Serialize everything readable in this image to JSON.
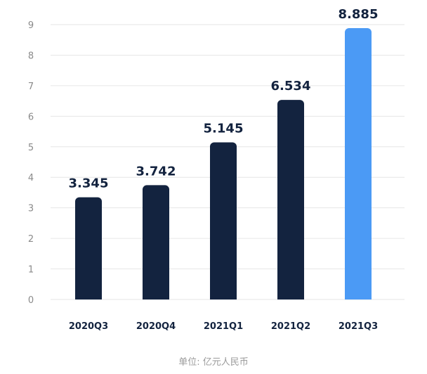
{
  "chart_data": {
    "type": "bar",
    "categories": [
      "2020Q3",
      "2020Q4",
      "2021Q1",
      "2021Q2",
      "2021Q3"
    ],
    "values": [
      3.345,
      3.742,
      5.145,
      6.534,
      8.885
    ],
    "value_labels": [
      "3.345",
      "3.742",
      "5.145",
      "6.534",
      "8.885"
    ],
    "yticks": [
      0,
      1,
      2,
      3,
      4,
      5,
      6,
      7,
      8,
      9
    ],
    "ylim": [
      0,
      9
    ],
    "grid": true,
    "unit_label": "单位: 亿元人民币",
    "colors": {
      "default_bar": "#13233f",
      "highlight_bar": "#4b9af5",
      "highlight_index": 4,
      "grid": "#e6e6e6"
    }
  }
}
